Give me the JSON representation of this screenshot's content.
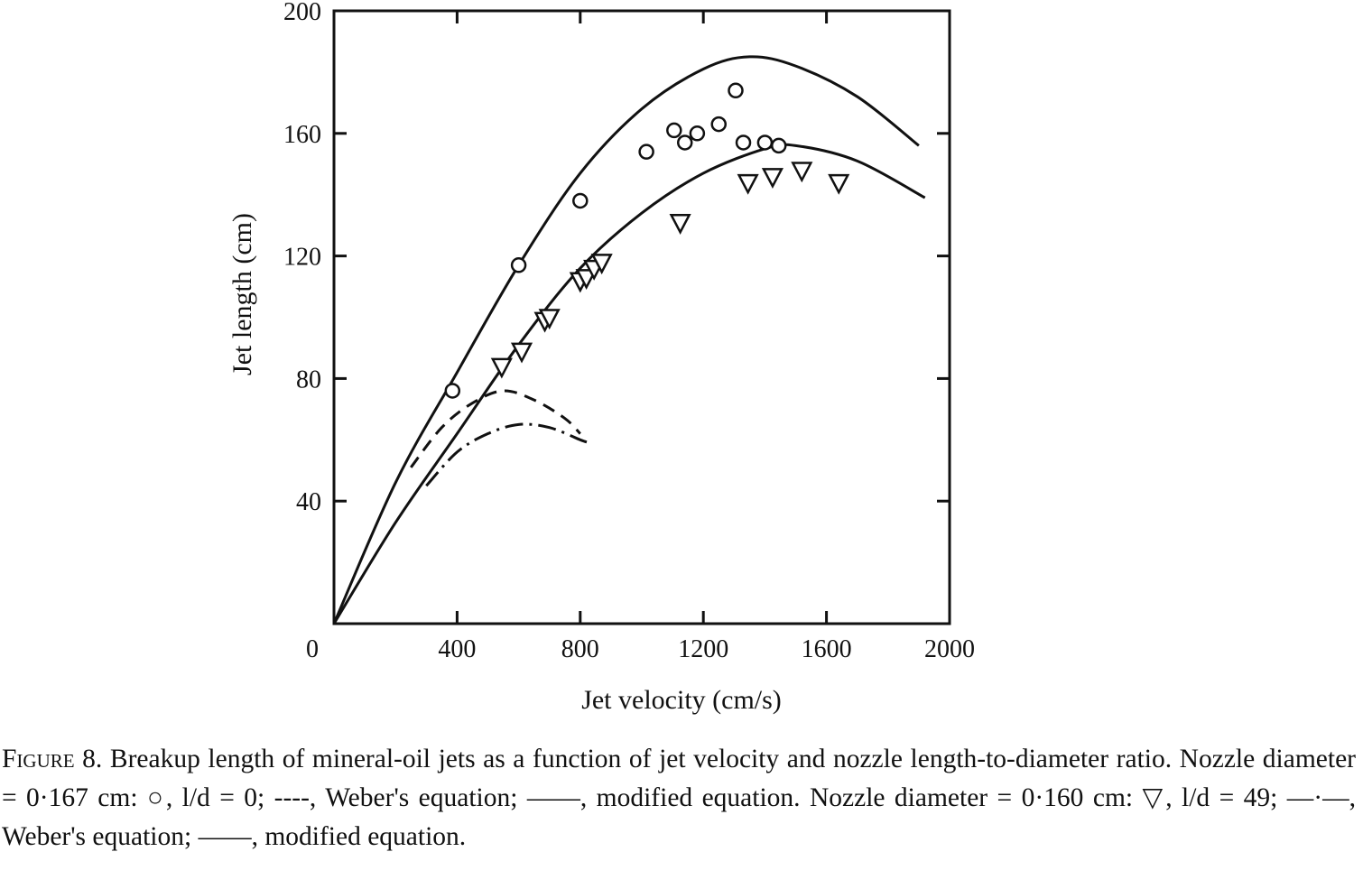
{
  "chart_data": {
    "type": "scatter",
    "xlabel": "Jet velocity (cm/s)",
    "ylabel": "Jet length (cm)",
    "xlim": [
      0,
      2000
    ],
    "ylim": [
      0,
      200
    ],
    "x_ticks": [
      0,
      400,
      800,
      1200,
      1600,
      2000
    ],
    "y_ticks": [
      40,
      80,
      120,
      160,
      200
    ],
    "grid": false,
    "legend": "none",
    "series": [
      {
        "marker": "circle",
        "points": [
          [
            385,
            76
          ],
          [
            600,
            117
          ],
          [
            800,
            138
          ],
          [
            1015,
            154
          ],
          [
            1105,
            161
          ],
          [
            1140,
            157
          ],
          [
            1180,
            160
          ],
          [
            1250,
            163
          ],
          [
            1305,
            174
          ],
          [
            1330,
            157
          ],
          [
            1400,
            157
          ],
          [
            1445,
            156
          ]
        ]
      },
      {
        "marker": "triangle-down",
        "points": [
          [
            545,
            84
          ],
          [
            610,
            89
          ],
          [
            685,
            99
          ],
          [
            700,
            100
          ],
          [
            800,
            112
          ],
          [
            820,
            113
          ],
          [
            845,
            116
          ],
          [
            870,
            118
          ],
          [
            1125,
            131
          ],
          [
            1345,
            144
          ],
          [
            1425,
            146
          ],
          [
            1520,
            148
          ],
          [
            1640,
            144
          ]
        ]
      },
      {
        "style": "solid",
        "points": [
          [
            0,
            0
          ],
          [
            200,
            46
          ],
          [
            400,
            82
          ],
          [
            600,
            117
          ],
          [
            800,
            147
          ],
          [
            1000,
            168
          ],
          [
            1200,
            181
          ],
          [
            1350,
            185
          ],
          [
            1500,
            182
          ],
          [
            1700,
            172
          ],
          [
            1900,
            156
          ]
        ]
      },
      {
        "style": "solid",
        "points": [
          [
            0,
            0
          ],
          [
            200,
            33
          ],
          [
            400,
            62
          ],
          [
            600,
            91
          ],
          [
            800,
            116
          ],
          [
            1000,
            134
          ],
          [
            1200,
            147
          ],
          [
            1400,
            155
          ],
          [
            1500,
            156
          ],
          [
            1700,
            151
          ],
          [
            1920,
            139
          ]
        ]
      },
      {
        "style": "dashed",
        "points": [
          [
            250,
            51
          ],
          [
            350,
            64
          ],
          [
            450,
            72
          ],
          [
            550,
            76
          ],
          [
            650,
            73
          ],
          [
            750,
            67
          ],
          [
            800,
            62
          ]
        ]
      },
      {
        "style": "dash-dot",
        "points": [
          [
            300,
            45
          ],
          [
            400,
            56
          ],
          [
            500,
            62
          ],
          [
            600,
            65
          ],
          [
            700,
            64
          ],
          [
            800,
            60
          ],
          [
            830,
            59
          ]
        ]
      }
    ]
  },
  "caption": {
    "label": "Figure 8.",
    "text": " Breakup length of mineral-oil jets as a function of jet velocity and nozzle length-to-diameter ratio. Nozzle diameter = 0·167 cm: ○, l/d = 0; ----, Weber's equation; ——, modified equation. Nozzle diameter = 0·160 cm: ▽, l/d = 49; —·—, Weber's equation; ——, modified equation."
  }
}
